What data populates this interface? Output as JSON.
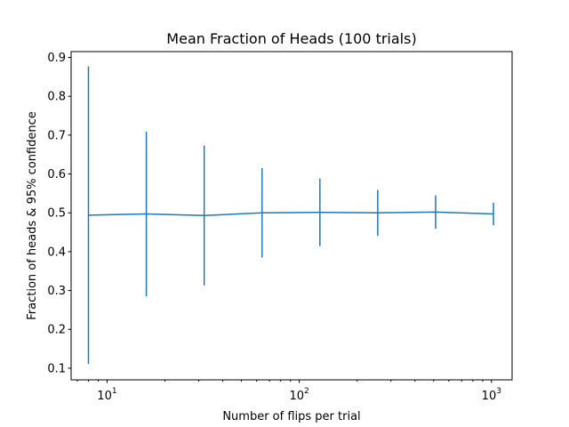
{
  "chart_data": {
    "type": "line",
    "title": "Mean Fraction of Heads (100 trials)",
    "xlabel": "Number of flips per trial",
    "ylabel": "Fraction of heads & 95% confidence",
    "xscale": "log",
    "xlim": [
      6.5,
      1280
    ],
    "ylim": [
      0.07,
      0.915
    ],
    "x_ticks": [
      {
        "base": "10",
        "exp": "1",
        "value": 10
      },
      {
        "base": "10",
        "exp": "2",
        "value": 100
      },
      {
        "base": "10",
        "exp": "3",
        "value": 1000
      }
    ],
    "y_ticks": [
      "0.1",
      "0.2",
      "0.3",
      "0.4",
      "0.5",
      "0.6",
      "0.7",
      "0.8",
      "0.9"
    ],
    "grid": false,
    "legend": "none",
    "color": "#1f77b4",
    "series": [
      {
        "x": [
          8,
          16,
          32,
          64,
          128,
          256,
          512,
          1024
        ],
        "y": [
          0.494,
          0.497,
          0.493,
          0.5,
          0.501,
          0.5,
          0.502,
          0.497
        ],
        "error": [
          0.383,
          0.212,
          0.18,
          0.115,
          0.087,
          0.059,
          0.043,
          0.029
        ]
      }
    ]
  }
}
